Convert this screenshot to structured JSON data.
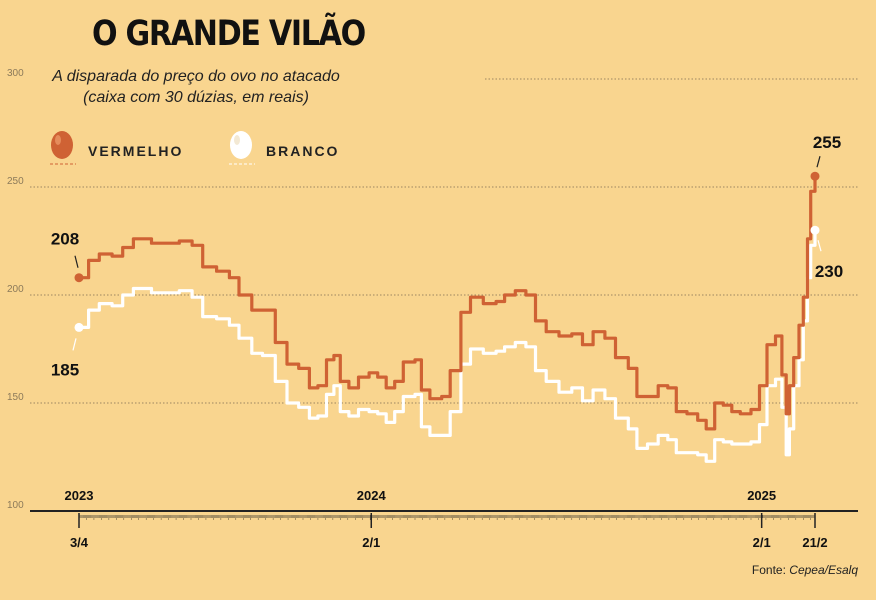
{
  "title": "O GRANDE VILÃO",
  "subtitle_line1": "A disparada do preço do ovo no atacado",
  "subtitle_line2": "(caixa com 30 dúzias, em reais)",
  "source_prefix": "Fonte: ",
  "source_name": "Cepea/Esalq",
  "colors": {
    "background": "#f9d58f",
    "vermelho": "#cf6234",
    "branco": "#ffffff",
    "grid": "#9b8560",
    "axis": "#222222"
  },
  "legend": [
    {
      "label": "VERMELHO",
      "icon": "red-egg-icon",
      "color": "#cf6234"
    },
    {
      "label": "BRANCO",
      "icon": "white-egg-icon",
      "color": "#ffffff"
    }
  ],
  "chart_data": {
    "type": "line",
    "ylim": [
      100,
      300
    ],
    "yticks": [
      100,
      150,
      200,
      250,
      300
    ],
    "grid": true,
    "x_range": [
      "2023-04-03",
      "2025-02-21"
    ],
    "year_labels": [
      {
        "date": "2023-04-03",
        "label": "2023"
      },
      {
        "date": "2024-01-02",
        "label": "2024"
      },
      {
        "date": "2025-01-02",
        "label": "2025"
      }
    ],
    "date_labels": [
      {
        "date": "2023-04-03",
        "label": "3/4"
      },
      {
        "date": "2024-01-02",
        "label": "2/1"
      },
      {
        "date": "2025-01-02",
        "label": "2/1"
      },
      {
        "date": "2025-02-21",
        "label": "21/2"
      }
    ],
    "annotations": [
      {
        "series": "VERMELHO",
        "date": "2023-04-03",
        "value": 208,
        "label": "208"
      },
      {
        "series": "VERMELHO",
        "date": "2025-02-21",
        "value": 255,
        "label": "255"
      },
      {
        "series": "BRANCO",
        "date": "2023-04-03",
        "value": 185,
        "label": "185"
      },
      {
        "series": "BRANCO",
        "date": "2025-02-21",
        "value": 230,
        "label": "230"
      }
    ],
    "series": [
      {
        "name": "VERMELHO",
        "color": "#cf6234",
        "points": [
          [
            "2023-04-03",
            208
          ],
          [
            "2023-04-12",
            216
          ],
          [
            "2023-04-22",
            219
          ],
          [
            "2023-05-04",
            218
          ],
          [
            "2023-05-14",
            222
          ],
          [
            "2023-05-24",
            226
          ],
          [
            "2023-06-10",
            224
          ],
          [
            "2023-06-24",
            224
          ],
          [
            "2023-07-06",
            225
          ],
          [
            "2023-07-18",
            223
          ],
          [
            "2023-07-28",
            213
          ],
          [
            "2023-08-10",
            211
          ],
          [
            "2023-08-22",
            208
          ],
          [
            "2023-08-31",
            200
          ],
          [
            "2023-09-12",
            193
          ],
          [
            "2023-09-22",
            193
          ],
          [
            "2023-10-04",
            178
          ],
          [
            "2023-10-15",
            168
          ],
          [
            "2023-10-26",
            166
          ],
          [
            "2023-11-05",
            157
          ],
          [
            "2023-11-13",
            158
          ],
          [
            "2023-11-21",
            170
          ],
          [
            "2023-11-28",
            172
          ],
          [
            "2023-12-04",
            160
          ],
          [
            "2023-12-12",
            157
          ],
          [
            "2023-12-21",
            162
          ],
          [
            "2023-12-31",
            164
          ],
          [
            "2024-01-08",
            162
          ],
          [
            "2024-01-16",
            157
          ],
          [
            "2024-01-24",
            160
          ],
          [
            "2024-02-01",
            169
          ],
          [
            "2024-02-12",
            170
          ],
          [
            "2024-02-18",
            156
          ],
          [
            "2024-02-26",
            152
          ],
          [
            "2024-03-08",
            153
          ],
          [
            "2024-03-16",
            165
          ],
          [
            "2024-03-26",
            192
          ],
          [
            "2024-04-04",
            199
          ],
          [
            "2024-04-16",
            196
          ],
          [
            "2024-04-28",
            197
          ],
          [
            "2024-05-06",
            200
          ],
          [
            "2024-05-16",
            202
          ],
          [
            "2024-05-26",
            200
          ],
          [
            "2024-06-04",
            188
          ],
          [
            "2024-06-14",
            183
          ],
          [
            "2024-06-26",
            181
          ],
          [
            "2024-07-08",
            182
          ],
          [
            "2024-07-18",
            177
          ],
          [
            "2024-07-28",
            183
          ],
          [
            "2024-08-08",
            180
          ],
          [
            "2024-08-18",
            171
          ],
          [
            "2024-08-30",
            166
          ],
          [
            "2024-09-07",
            153
          ],
          [
            "2024-09-17",
            153
          ],
          [
            "2024-09-27",
            158
          ],
          [
            "2024-10-06",
            157
          ],
          [
            "2024-10-14",
            146
          ],
          [
            "2024-10-24",
            145
          ],
          [
            "2024-11-03",
            142
          ],
          [
            "2024-11-11",
            138
          ],
          [
            "2024-11-19",
            150
          ],
          [
            "2024-11-27",
            149
          ],
          [
            "2024-12-05",
            146
          ],
          [
            "2024-12-13",
            145
          ],
          [
            "2024-12-23",
            147
          ],
          [
            "2024-12-31",
            158
          ],
          [
            "2025-01-07",
            177
          ],
          [
            "2025-01-15",
            181
          ],
          [
            "2025-01-21",
            163
          ],
          [
            "2025-01-25",
            145
          ],
          [
            "2025-01-28",
            158
          ],
          [
            "2025-02-01",
            171
          ],
          [
            "2025-02-06",
            186
          ],
          [
            "2025-02-10",
            199
          ],
          [
            "2025-02-14",
            226
          ],
          [
            "2025-02-17",
            248
          ],
          [
            "2025-02-21",
            255
          ]
        ]
      },
      {
        "name": "BRANCO",
        "color": "#ffffff",
        "points": [
          [
            "2023-04-03",
            185
          ],
          [
            "2023-04-12",
            193
          ],
          [
            "2023-04-22",
            196
          ],
          [
            "2023-05-04",
            195
          ],
          [
            "2023-05-14",
            200
          ],
          [
            "2023-05-24",
            203
          ],
          [
            "2023-06-10",
            201
          ],
          [
            "2023-06-24",
            201
          ],
          [
            "2023-07-06",
            202
          ],
          [
            "2023-07-18",
            199
          ],
          [
            "2023-07-28",
            190
          ],
          [
            "2023-08-10",
            189
          ],
          [
            "2023-08-22",
            186
          ],
          [
            "2023-08-31",
            180
          ],
          [
            "2023-09-12",
            173
          ],
          [
            "2023-09-22",
            172
          ],
          [
            "2023-10-04",
            160
          ],
          [
            "2023-10-15",
            150
          ],
          [
            "2023-10-26",
            148
          ],
          [
            "2023-11-05",
            143
          ],
          [
            "2023-11-13",
            144
          ],
          [
            "2023-11-21",
            154
          ],
          [
            "2023-11-28",
            158
          ],
          [
            "2023-12-04",
            146
          ],
          [
            "2023-12-12",
            144
          ],
          [
            "2023-12-21",
            147
          ],
          [
            "2023-12-31",
            146
          ],
          [
            "2024-01-08",
            145
          ],
          [
            "2024-01-16",
            141
          ],
          [
            "2024-01-24",
            146
          ],
          [
            "2024-02-01",
            153
          ],
          [
            "2024-02-12",
            154
          ],
          [
            "2024-02-18",
            139
          ],
          [
            "2024-02-26",
            135
          ],
          [
            "2024-03-08",
            135
          ],
          [
            "2024-03-16",
            146
          ],
          [
            "2024-03-26",
            168
          ],
          [
            "2024-04-04",
            175
          ],
          [
            "2024-04-16",
            173
          ],
          [
            "2024-04-28",
            174
          ],
          [
            "2024-05-06",
            176
          ],
          [
            "2024-05-16",
            178
          ],
          [
            "2024-05-26",
            176
          ],
          [
            "2024-06-04",
            165
          ],
          [
            "2024-06-14",
            160
          ],
          [
            "2024-06-26",
            155
          ],
          [
            "2024-07-08",
            157
          ],
          [
            "2024-07-18",
            151
          ],
          [
            "2024-07-28",
            156
          ],
          [
            "2024-08-08",
            152
          ],
          [
            "2024-08-18",
            143
          ],
          [
            "2024-08-30",
            138
          ],
          [
            "2024-09-07",
            129
          ],
          [
            "2024-09-17",
            131
          ],
          [
            "2024-09-27",
            135
          ],
          [
            "2024-10-06",
            133
          ],
          [
            "2024-10-14",
            127
          ],
          [
            "2024-10-24",
            127
          ],
          [
            "2024-11-03",
            126
          ],
          [
            "2024-11-11",
            123
          ],
          [
            "2024-11-19",
            133
          ],
          [
            "2024-11-27",
            132
          ],
          [
            "2024-12-05",
            131
          ],
          [
            "2024-12-13",
            131
          ],
          [
            "2024-12-23",
            132
          ],
          [
            "2024-12-31",
            140
          ],
          [
            "2025-01-07",
            158
          ],
          [
            "2025-01-15",
            161
          ],
          [
            "2025-01-21",
            148
          ],
          [
            "2025-01-25",
            126
          ],
          [
            "2025-01-28",
            138
          ],
          [
            "2025-02-01",
            158
          ],
          [
            "2025-02-06",
            170
          ],
          [
            "2025-02-10",
            188
          ],
          [
            "2025-02-14",
            208
          ],
          [
            "2025-02-17",
            223
          ],
          [
            "2025-02-21",
            230
          ]
        ]
      }
    ]
  }
}
